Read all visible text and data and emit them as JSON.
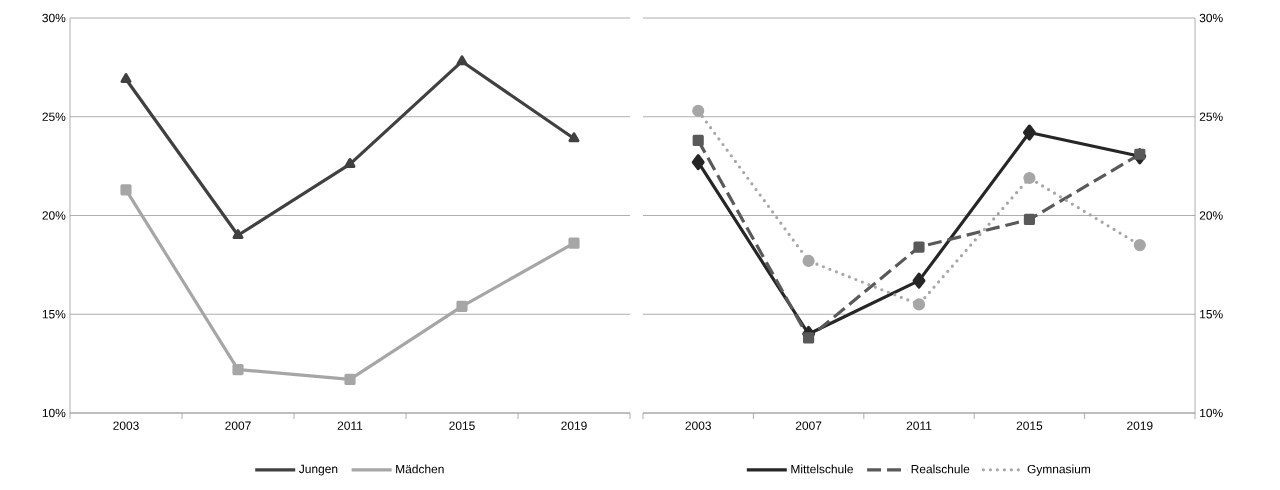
{
  "chart_data": [
    {
      "type": "line",
      "categories": [
        "2003",
        "2007",
        "2011",
        "2015",
        "2019"
      ],
      "series": [
        {
          "name": "Jungen",
          "color": "#404040",
          "marker": "triangle",
          "line_style": "solid",
          "values": [
            26.9,
            19.0,
            22.6,
            27.8,
            23.9
          ]
        },
        {
          "name": "Mädchen",
          "color": "#a6a6a6",
          "marker": "square",
          "line_style": "solid",
          "values": [
            21.3,
            12.2,
            11.7,
            15.4,
            18.6
          ]
        }
      ],
      "ylim": [
        10,
        30
      ],
      "yticks": [
        {
          "value": 10,
          "label": "10%"
        },
        {
          "value": 15,
          "label": "15%"
        },
        {
          "value": 20,
          "label": "20%"
        },
        {
          "value": 25,
          "label": "25%"
        },
        {
          "value": 30,
          "label": "30%"
        }
      ],
      "grid": "y",
      "legend": "bottom"
    },
    {
      "type": "line",
      "categories": [
        "2003",
        "2007",
        "2011",
        "2015",
        "2019"
      ],
      "series": [
        {
          "name": "Mittelschule",
          "color": "#262626",
          "marker": "diamond",
          "line_style": "solid",
          "values": [
            22.7,
            14.0,
            16.7,
            24.2,
            23.0
          ]
        },
        {
          "name": "Realschule",
          "color": "#595959",
          "marker": "square",
          "line_style": "dashed",
          "values": [
            23.8,
            13.8,
            18.4,
            19.8,
            23.1
          ]
        },
        {
          "name": "Gymnasium",
          "color": "#a6a6a6",
          "marker": "circle",
          "line_style": "dotted",
          "values": [
            25.3,
            17.7,
            15.5,
            21.9,
            18.5
          ]
        }
      ],
      "ylim": [
        10,
        30
      ],
      "yticks": [
        {
          "value": 10,
          "label": "10%"
        },
        {
          "value": 15,
          "label": "15%"
        },
        {
          "value": 20,
          "label": "20%"
        },
        {
          "value": 25,
          "label": "25%"
        },
        {
          "value": 30,
          "label": "30%"
        }
      ],
      "grid": "y",
      "legend": "bottom"
    }
  ]
}
